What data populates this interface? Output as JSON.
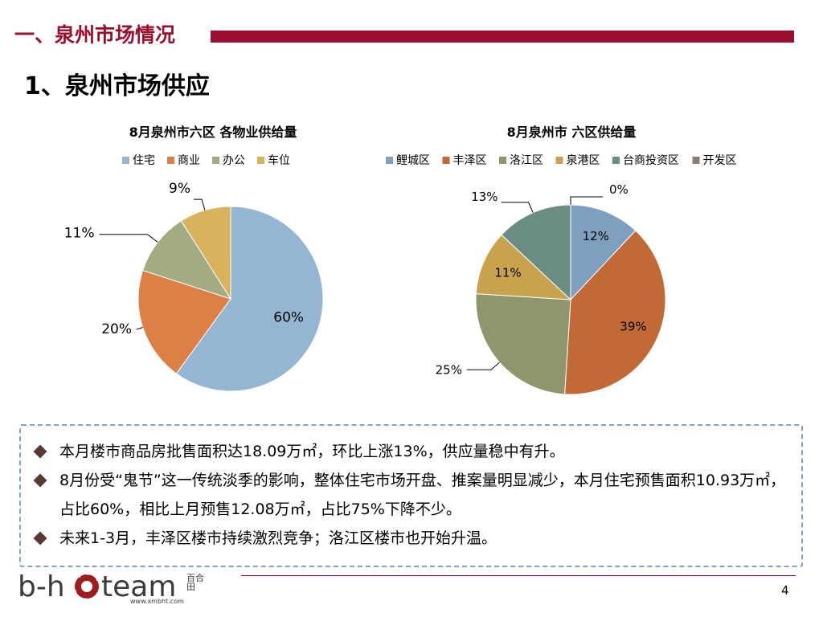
{
  "header": {
    "section_title": "一、泉州市场情况",
    "slide_heading": "1、泉州市场供应"
  },
  "chart_data": [
    {
      "type": "pie",
      "title": "8月泉州市六区 各物业供给量",
      "legend_position": "top",
      "categories": [
        "住宅",
        "商业",
        "办公",
        "车位"
      ],
      "values": [
        60,
        20,
        11,
        9
      ],
      "labels": [
        "60%",
        "20%",
        "11%",
        "9%"
      ],
      "colors": [
        "#94b6d2",
        "#dd8047",
        "#a5ab81",
        "#d8b25c"
      ]
    },
    {
      "type": "pie",
      "title": "8月泉州市  六区供给量",
      "legend_position": "top",
      "categories": [
        "鲤城区",
        "丰泽区",
        "洛江区",
        "泉港区",
        "台商投资区",
        "开发区"
      ],
      "values": [
        12,
        39,
        25,
        11,
        13,
        0
      ],
      "labels": [
        "12%",
        "39%",
        "25%",
        "11%",
        "13%",
        "0%"
      ],
      "colors": [
        "#7f9fbf",
        "#c26a37",
        "#91956d",
        "#c8a24d",
        "#6b8c82",
        "#8c7b72"
      ]
    }
  ],
  "summary": {
    "items": [
      "本月楼市商品房批售面积达18.09万㎡，环比上涨13%，供应量稳中有升。",
      "8月份受“鬼节”这一传统淡季的影响，整体住宅市场开盘、推案量明显减少，本月住宅预售面积10.93万㎡，占比60%，相比上月预售12.08万㎡，占比75%下降不少。",
      "未来1-3月，丰泽区楼市持续激烈竞争；洛江区楼市也开始升温。"
    ]
  },
  "footer": {
    "logo_text": "b-hoteam",
    "logo_side": "百合田",
    "logo_url": "www.xmbht.com",
    "page_number": "4"
  }
}
